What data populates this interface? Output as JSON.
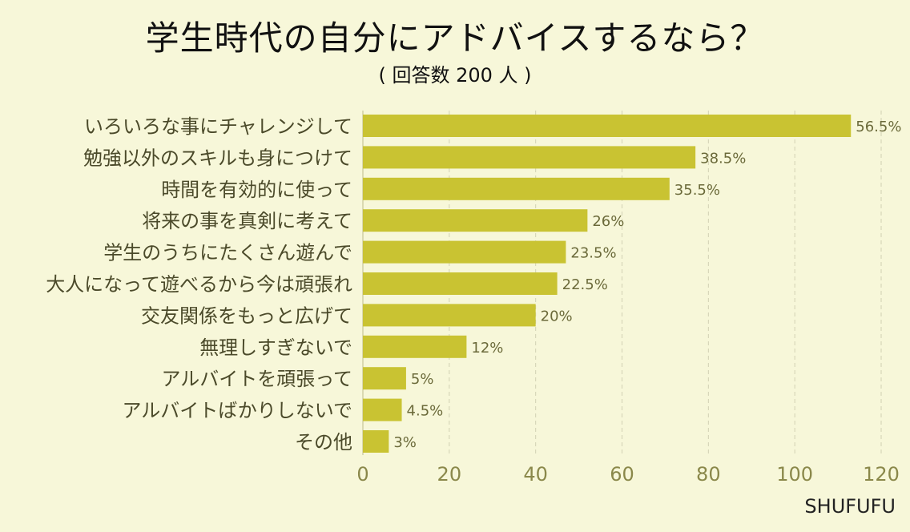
{
  "chart_data": {
    "type": "bar",
    "orientation": "horizontal",
    "title": "学生時代の自分にアドバイスするなら？",
    "subtitle": "( 回答数 200 人 )",
    "categories": [
      "いろいろな事にチャレンジして",
      "勉強以外のスキルも身につけて",
      "時間を有効的に使って",
      "将来の事を真剣に考えて",
      "学生のうちにたくさん遊んで",
      "大人になって遊べるから今は頑張れ",
      "交友関係をもっと広げて",
      "無理しすぎないで",
      "アルバイトを頑張って",
      "アルバイトばかりしないで",
      "その他"
    ],
    "values": [
      113,
      77,
      71,
      52,
      47,
      45,
      40,
      24,
      10,
      9,
      6
    ],
    "value_labels": [
      "56.5%",
      "38.5%",
      "35.5%",
      "26%",
      "23.5%",
      "22.5%",
      "20%",
      "12%",
      "5%",
      "4.5%",
      "3%"
    ],
    "xlim": [
      0,
      120
    ],
    "xticks": [
      "0",
      "20",
      "40",
      "60",
      "80",
      "100",
      "120"
    ],
    "grid": "vertical dashed",
    "bar_color": "#c9c332",
    "background_color": "#f7f7d9"
  },
  "brand": "SHUFUFU"
}
